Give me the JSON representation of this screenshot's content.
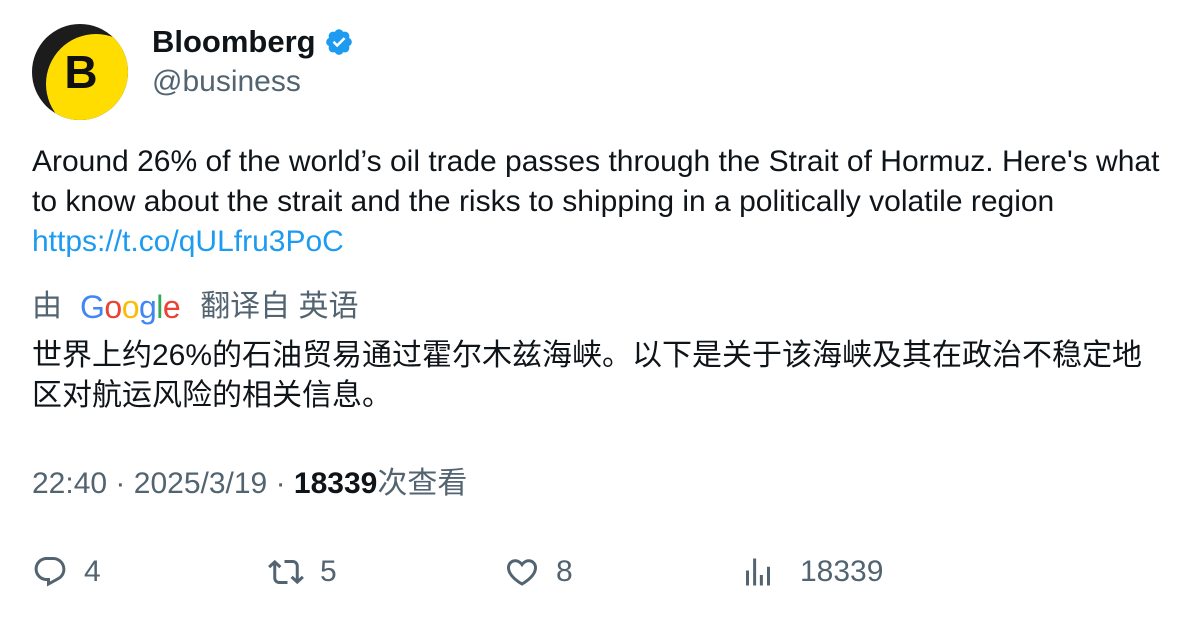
{
  "author": {
    "avatar_letter": "B",
    "display_name": "Bloomberg",
    "handle": "@business",
    "verified": true,
    "verified_color": "#1d9bf0",
    "avatar_color": "#ffdd00"
  },
  "tweet": {
    "text": "Around 26% of the world’s oil trade passes through the Strait of Hormuz. Here's what to know about the strait and the risks to shipping in a politically volatile region ",
    "link": "https://t.co/qULfru3PoC",
    "link_color": "#1d9bf0"
  },
  "translation": {
    "prefix": "由",
    "provider_letters": [
      "G",
      "o",
      "o",
      "g",
      "l",
      "e"
    ],
    "suffix": "翻译自 英语",
    "text": "世界上约26%的石油贸易通过霍尔木兹海峡。以下是关于该海峡及其在政治不稳定地区对航运风险的相关信息。"
  },
  "meta": {
    "time": "22:40",
    "separator": "·",
    "date": "2025/3/19",
    "views_count": "18339",
    "views_label": "次查看"
  },
  "actions": {
    "reply_icon": "reply-icon",
    "reply_count": "4",
    "retweet_icon": "retweet-icon",
    "retweet_count": "5",
    "like_icon": "heart-icon",
    "like_count": "8",
    "views_icon": "analytics-icon",
    "views_count": "18339"
  }
}
